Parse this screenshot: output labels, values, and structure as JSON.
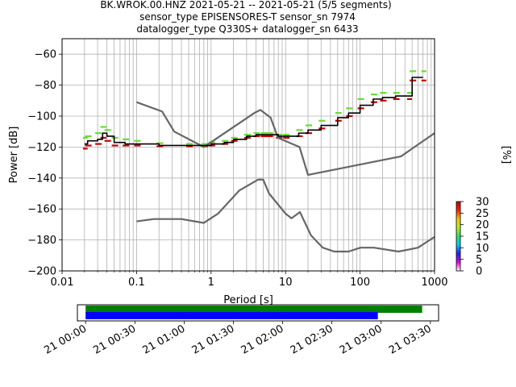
{
  "title_lines": [
    "BK.WROK.00.HNZ   2021-05-21 -- 2021-05-21  (5/5 segments)",
    "sensor_type EPISENSORES-T sensor_sn 7974",
    "datalogger_type Q330S+ datalogger_sn 6433"
  ],
  "chart_data": [
    {
      "type": "line",
      "subtype": "ppsd",
      "xlabel": "Period [s]",
      "ylabel": "Power [dB]",
      "x_scale": "log",
      "xlim": [
        0.01,
        1000
      ],
      "ylim": [
        -200,
        -50
      ],
      "x_ticks": [
        0.01,
        0.1,
        1,
        10,
        100,
        1000
      ],
      "x_tick_labels": [
        "0.01",
        "0.1",
        "1",
        "10",
        "100",
        "1000"
      ],
      "y_ticks": [
        -200,
        -180,
        -160,
        -140,
        -120,
        -100,
        -80,
        -60
      ],
      "y_tick_labels": [
        "−200",
        "−180",
        "−160",
        "−140",
        "−120",
        "−100",
        "−80",
        "−60"
      ],
      "grid": true,
      "colorbar": {
        "label": "[%]",
        "min": 0,
        "max": 30,
        "ticks": [
          0,
          5,
          10,
          15,
          20,
          25,
          30
        ],
        "tick_labels": [
          "0",
          "5",
          "10",
          "15",
          "20",
          "25",
          "30"
        ],
        "colors": [
          "#ffffff",
          "#e000e0",
          "#1f1fff",
          "#00c8ff",
          "#30e060",
          "#b0f020",
          "#ffc000",
          "#ff2000",
          "#c00000"
        ]
      },
      "series": [
        {
          "name": "",
          "role": "noise-model-upper",
          "color": "#666666",
          "x": [
            0.1,
            0.22,
            0.32,
            0.8,
            3.8,
            4.6,
            6.3,
            7.9,
            15.4,
            20,
            354.8,
            1000
          ],
          "y": [
            -91,
            -97,
            -110,
            -120,
            -98,
            -96,
            -101,
            -114,
            -120,
            -138,
            -126,
            -111
          ]
        },
        {
          "name": "",
          "role": "noise-model-lower",
          "color": "#666666",
          "x": [
            0.1,
            0.17,
            0.4,
            0.8,
            1.24,
            2.4,
            4.3,
            5.0,
            6.0,
            10.0,
            12.0,
            15.6,
            21.9,
            31.6,
            45.0,
            70.0,
            101,
            154,
            328,
            600,
            1000
          ],
          "y": [
            -168,
            -166.5,
            -166.5,
            -169,
            -163,
            -148,
            -141,
            -141,
            -150,
            -163,
            -166,
            -162,
            -177,
            -185,
            -187.5,
            -187.5,
            -185,
            -185,
            -187.5,
            -185,
            -178
          ]
        },
        {
          "name": "",
          "role": "mean",
          "color": "#000000",
          "x": [
            0.02,
            0.022,
            0.03,
            0.035,
            0.04,
            0.05,
            0.07,
            0.1,
            0.2,
            0.5,
            0.8,
            1.0,
            1.5,
            2.0,
            3.0,
            4.0,
            5.0,
            6.0,
            8.0,
            10.0,
            15.0,
            20.0,
            30.0,
            50.0,
            70.0,
            100,
            150,
            200,
            300,
            450,
            500,
            700
          ],
          "y": [
            -118,
            -116,
            -115,
            -111,
            -113,
            -117,
            -118,
            -118,
            -119,
            -119,
            -119,
            -118,
            -117,
            -115,
            -113,
            -112,
            -112,
            -112,
            -113,
            -113,
            -111,
            -109,
            -106,
            -101,
            -98,
            -93,
            -89,
            -88,
            -87,
            -87,
            -75,
            -75
          ]
        }
      ],
      "ppsd_bands": [
        {
          "name": "",
          "role": "low-percentile",
          "color": "#cc0000",
          "x": [
            0.02,
            0.022,
            0.03,
            0.035,
            0.04,
            0.05,
            0.07,
            0.1,
            0.2,
            0.5,
            0.8,
            1.0,
            1.5,
            2.0,
            3.0,
            4.0,
            5.0,
            6.0,
            8.0,
            10.0,
            15.0,
            20.0,
            30.0,
            50.0,
            70.0,
            100,
            150,
            200,
            300,
            450,
            500,
            700
          ],
          "y": [
            -121,
            -119,
            -118,
            -114,
            -116,
            -119,
            -119,
            -119,
            -119.5,
            -119.5,
            -119.5,
            -119,
            -118,
            -116,
            -114,
            -113,
            -113,
            -113,
            -114,
            -114,
            -113,
            -111,
            -108,
            -103,
            -100,
            -95,
            -91,
            -90,
            -89,
            -89,
            -77,
            -77
          ]
        },
        {
          "name": "",
          "role": "high-percentile",
          "color": "#66dd33",
          "x": [
            0.02,
            0.022,
            0.03,
            0.035,
            0.04,
            0.05,
            0.07,
            0.1,
            0.2,
            0.5,
            0.8,
            1.0,
            1.5,
            2.0,
            3.0,
            4.0,
            5.0,
            6.0,
            8.0,
            10.0,
            15.0,
            20.0,
            30.0,
            50.0,
            70.0,
            100,
            150,
            200,
            300,
            450,
            500,
            700
          ],
          "y": [
            -114,
            -113,
            -111,
            -107,
            -109,
            -114,
            -115,
            -116,
            -117.5,
            -118,
            -118,
            -117,
            -116,
            -114,
            -112,
            -111,
            -111,
            -111,
            -112,
            -112,
            -109,
            -106,
            -103,
            -98,
            -95,
            -89,
            -86,
            -85,
            -85,
            -85,
            -71,
            -71
          ]
        }
      ]
    },
    {
      "type": "timeline",
      "x_ticks": [
        "21 00:00",
        "21 00:30",
        "21 01:00",
        "21 01:30",
        "21 02:00",
        "21 02:30",
        "21 03:00",
        "21 03:30"
      ],
      "x_tick_minutes": [
        0,
        30,
        60,
        90,
        120,
        150,
        180,
        210
      ],
      "xlim_minutes": [
        -5,
        215
      ],
      "bars": [
        {
          "role": "data-coverage",
          "color": "#008000",
          "start": 0,
          "end": 205
        },
        {
          "role": "psd-coverage",
          "color": "#0000ff",
          "start": 0,
          "end": 178
        }
      ]
    }
  ]
}
